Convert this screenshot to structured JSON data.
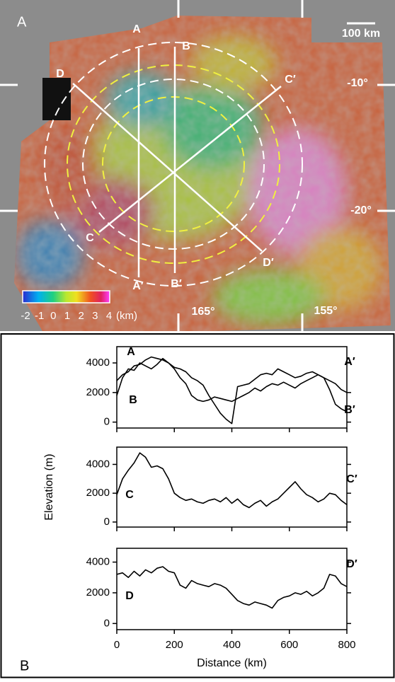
{
  "map": {
    "panel_label": "A",
    "profile_labels": [
      "A",
      "B",
      "C′",
      "D",
      "C",
      "D′",
      "A′",
      "B′"
    ],
    "scale_bar": "100 km",
    "latitudes": [
      "-10°",
      "-20°"
    ],
    "longitudes": [
      "165°",
      "155°"
    ],
    "colorbar": {
      "ticks": [
        -2,
        -1,
        0,
        1,
        2,
        3,
        4
      ],
      "unit": "(km)"
    }
  },
  "panel_b_label": "B",
  "chart_data": [
    {
      "type": "line",
      "x": [
        0,
        20,
        40,
        60,
        80,
        100,
        120,
        140,
        160,
        180,
        200,
        220,
        240,
        260,
        280,
        300,
        320,
        340,
        360,
        380,
        400,
        420,
        440,
        460,
        480,
        500,
        520,
        540,
        560,
        580,
        600,
        620,
        640,
        660,
        680,
        700,
        720,
        740,
        760,
        780,
        800
      ],
      "series": [
        {
          "color": "#000000",
          "values": [
            1800,
            3000,
            3600,
            3500,
            4000,
            3800,
            3600,
            3900,
            4300,
            4000,
            3700,
            3600,
            3400,
            3000,
            2800,
            2500,
            1800,
            1200,
            600,
            200,
            -100,
            2400,
            2500,
            2600,
            2900,
            3200,
            3300,
            3200,
            3600,
            3400,
            3200,
            3000,
            3100,
            3300,
            3400,
            3200,
            3000,
            2800,
            2600,
            2200,
            2000
          ]
        },
        {
          "color": "#000000",
          "values": [
            2800,
            3200,
            3400,
            3800,
            3900,
            4200,
            4400,
            4300,
            4200,
            4000,
            3600,
            3000,
            2600,
            1800,
            1500,
            1400,
            1500,
            1700,
            1600,
            1500,
            1400,
            1600,
            1800,
            2000,
            2300,
            2100,
            2400,
            2600,
            2500,
            2700,
            2500,
            2300,
            2600,
            2800,
            3000,
            3200,
            3000,
            2200,
            1200,
            900,
            700
          ]
        }
      ],
      "xlim": [
        0,
        800
      ],
      "xticks": [
        0,
        200,
        400,
        600,
        800
      ],
      "ylim": [
        -400,
        5100
      ],
      "yticks": [
        0,
        2000,
        4000
      ],
      "annotations": [
        "A",
        "B",
        "A′",
        "B′"
      ]
    },
    {
      "type": "line",
      "x": [
        0,
        20,
        40,
        60,
        80,
        100,
        120,
        140,
        160,
        180,
        200,
        220,
        240,
        260,
        280,
        300,
        320,
        340,
        360,
        380,
        400,
        420,
        440,
        460,
        480,
        500,
        520,
        540,
        560,
        580,
        600,
        620,
        640,
        660,
        680,
        700,
        720,
        740,
        760,
        780,
        800
      ],
      "series": [
        {
          "color": "#000000",
          "values": [
            1900,
            3000,
            3600,
            4100,
            4800,
            4500,
            3800,
            3900,
            3700,
            3000,
            2000,
            1700,
            1500,
            1600,
            1400,
            1300,
            1500,
            1600,
            1400,
            1700,
            1300,
            1600,
            1200,
            1000,
            1300,
            1500,
            1100,
            1400,
            1600,
            2000,
            2400,
            2800,
            2300,
            1900,
            1700,
            1400,
            1600,
            2000,
            1900,
            1500,
            1200
          ]
        }
      ],
      "xlim": [
        0,
        800
      ],
      "xticks": [
        0,
        200,
        400,
        600,
        800
      ],
      "ylim": [
        -350,
        5200
      ],
      "yticks": [
        0,
        2000,
        4000
      ],
      "ylabel": "Elevation (m)",
      "annotations": [
        "C",
        "C′"
      ]
    },
    {
      "type": "line",
      "x": [
        0,
        20,
        40,
        60,
        80,
        100,
        120,
        140,
        160,
        180,
        200,
        220,
        240,
        260,
        280,
        300,
        320,
        340,
        360,
        380,
        400,
        420,
        440,
        460,
        480,
        500,
        520,
        540,
        560,
        580,
        600,
        620,
        640,
        660,
        680,
        700,
        720,
        740,
        760,
        780,
        800
      ],
      "series": [
        {
          "color": "#000000",
          "values": [
            3200,
            3300,
            3000,
            3400,
            3100,
            3500,
            3300,
            3600,
            3700,
            3400,
            3300,
            2500,
            2300,
            2800,
            2600,
            2500,
            2400,
            2600,
            2500,
            2300,
            1900,
            1500,
            1300,
            1200,
            1400,
            1300,
            1200,
            1000,
            1500,
            1700,
            1800,
            2000,
            1900,
            2100,
            1800,
            2000,
            2300,
            3200,
            3100,
            2600,
            2400
          ]
        }
      ],
      "xlim": [
        0,
        800
      ],
      "xticks": [
        0,
        200,
        400,
        600,
        800
      ],
      "ylim": [
        -400,
        4900
      ],
      "yticks": [
        0,
        2000,
        4000
      ],
      "xlabel": "Distance (km)",
      "annotations": [
        "D",
        "D′"
      ]
    }
  ]
}
